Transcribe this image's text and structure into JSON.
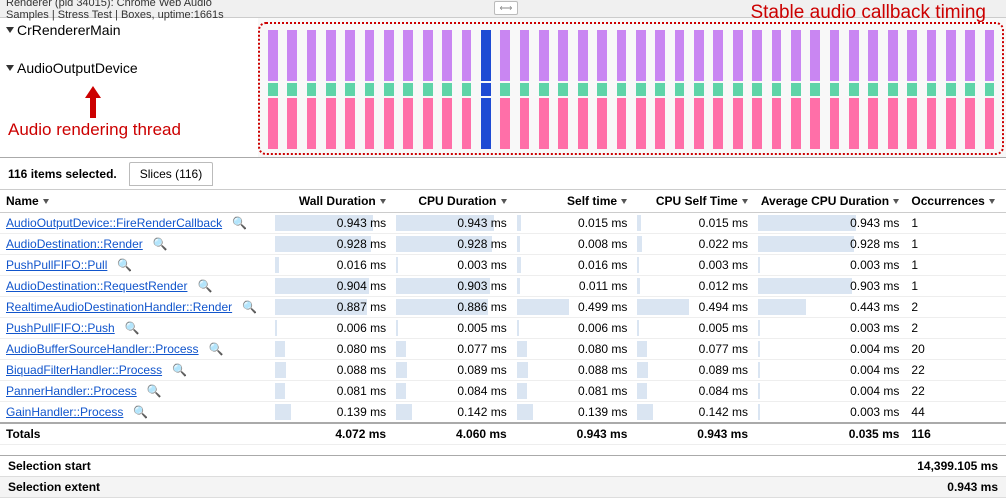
{
  "header": {
    "title": "Renderer (pid 34015): Chrome Web Audio Samples | Stress Test | Boxes, uptime:1661s"
  },
  "threads": {
    "renderer": "CrRendererMain",
    "audio": "AudioOutputDevice"
  },
  "annotations": {
    "stable": "Stable audio callback timing",
    "thread_label": "Audio rendering thread"
  },
  "timeline_handle_glyph": "⟷",
  "selection": {
    "count_text": "116 items selected.",
    "tab_label": "Slices (116)"
  },
  "columns": {
    "name": "Name",
    "wall": "Wall Duration",
    "cpu": "CPU Duration",
    "self": "Self time",
    "cpuself": "CPU Self Time",
    "avg": "Average CPU Duration",
    "occ": "Occurrences"
  },
  "rows": [
    {
      "name": "AudioOutputDevice::FireRenderCallback",
      "wall": "0.943 ms",
      "wall_w": 98,
      "cpu": "0.943 ms",
      "cpu_w": 98,
      "self": "0.015 ms",
      "self_w": 4,
      "cpuself": "0.015 ms",
      "cpuself_w": 4,
      "avg": "0.943 ms",
      "avg_w": 98,
      "occ": "1"
    },
    {
      "name": "AudioDestination::Render",
      "wall": "0.928 ms",
      "wall_w": 96,
      "cpu": "0.928 ms",
      "cpu_w": 96,
      "self": "0.008 ms",
      "self_w": 3,
      "cpuself": "0.022 ms",
      "cpuself_w": 5,
      "avg": "0.928 ms",
      "avg_w": 96,
      "occ": "1"
    },
    {
      "name": "PushPullFIFO::Pull",
      "wall": "0.016 ms",
      "wall_w": 4,
      "cpu": "0.003 ms",
      "cpu_w": 2,
      "self": "0.016 ms",
      "self_w": 4,
      "cpuself": "0.003 ms",
      "cpuself_w": 2,
      "avg": "0.003 ms",
      "avg_w": 2,
      "occ": "1"
    },
    {
      "name": "AudioDestination::RequestRender",
      "wall": "0.904 ms",
      "wall_w": 94,
      "cpu": "0.903 ms",
      "cpu_w": 94,
      "self": "0.011 ms",
      "self_w": 3,
      "cpuself": "0.012 ms",
      "cpuself_w": 3,
      "avg": "0.903 ms",
      "avg_w": 94,
      "occ": "1"
    },
    {
      "name": "RealtimeAudioDestinationHandler::Render",
      "wall": "0.887 ms",
      "wall_w": 92,
      "cpu": "0.886 ms",
      "cpu_w": 92,
      "self": "0.499 ms",
      "self_w": 52,
      "cpuself": "0.494 ms",
      "cpuself_w": 52,
      "avg": "0.443 ms",
      "avg_w": 48,
      "occ": "2"
    },
    {
      "name": "PushPullFIFO::Push",
      "wall": "0.006 ms",
      "wall_w": 2,
      "cpu": "0.005 ms",
      "cpu_w": 2,
      "self": "0.006 ms",
      "self_w": 2,
      "cpuself": "0.005 ms",
      "cpuself_w": 2,
      "avg": "0.003 ms",
      "avg_w": 2,
      "occ": "2"
    },
    {
      "name": "AudioBufferSourceHandler::Process",
      "wall": "0.080 ms",
      "wall_w": 10,
      "cpu": "0.077 ms",
      "cpu_w": 10,
      "self": "0.080 ms",
      "self_w": 10,
      "cpuself": "0.077 ms",
      "cpuself_w": 10,
      "avg": "0.004 ms",
      "avg_w": 2,
      "occ": "20"
    },
    {
      "name": "BiquadFilterHandler::Process",
      "wall": "0.088 ms",
      "wall_w": 11,
      "cpu": "0.089 ms",
      "cpu_w": 11,
      "self": "0.088 ms",
      "self_w": 11,
      "cpuself": "0.089 ms",
      "cpuself_w": 11,
      "avg": "0.004 ms",
      "avg_w": 2,
      "occ": "22"
    },
    {
      "name": "PannerHandler::Process",
      "wall": "0.081 ms",
      "wall_w": 10,
      "cpu": "0.084 ms",
      "cpu_w": 10,
      "self": "0.081 ms",
      "self_w": 10,
      "cpuself": "0.084 ms",
      "cpuself_w": 10,
      "avg": "0.004 ms",
      "avg_w": 2,
      "occ": "22"
    },
    {
      "name": "GainHandler::Process",
      "wall": "0.139 ms",
      "wall_w": 16,
      "cpu": "0.142 ms",
      "cpu_w": 16,
      "self": "0.139 ms",
      "self_w": 16,
      "cpuself": "0.142 ms",
      "cpuself_w": 16,
      "avg": "0.003 ms",
      "avg_w": 2,
      "occ": "44"
    }
  ],
  "totals": {
    "name": "Totals",
    "wall": "4.072 ms",
    "cpu": "4.060 ms",
    "self": "0.943 ms",
    "cpuself": "0.943 ms",
    "avg": "0.035 ms",
    "occ": "116"
  },
  "bottom": {
    "start_label": "Selection start",
    "start_value": "14,399.105 ms",
    "extent_label": "Selection extent",
    "extent_value": "0.943 ms"
  },
  "timeline": {
    "bar_count": 38,
    "blue_index": 11,
    "colors": {
      "purple": "#c986f2",
      "pink": "#ff6fa8",
      "green": "#5fd4a8",
      "blue": "#1e4bd4"
    }
  }
}
